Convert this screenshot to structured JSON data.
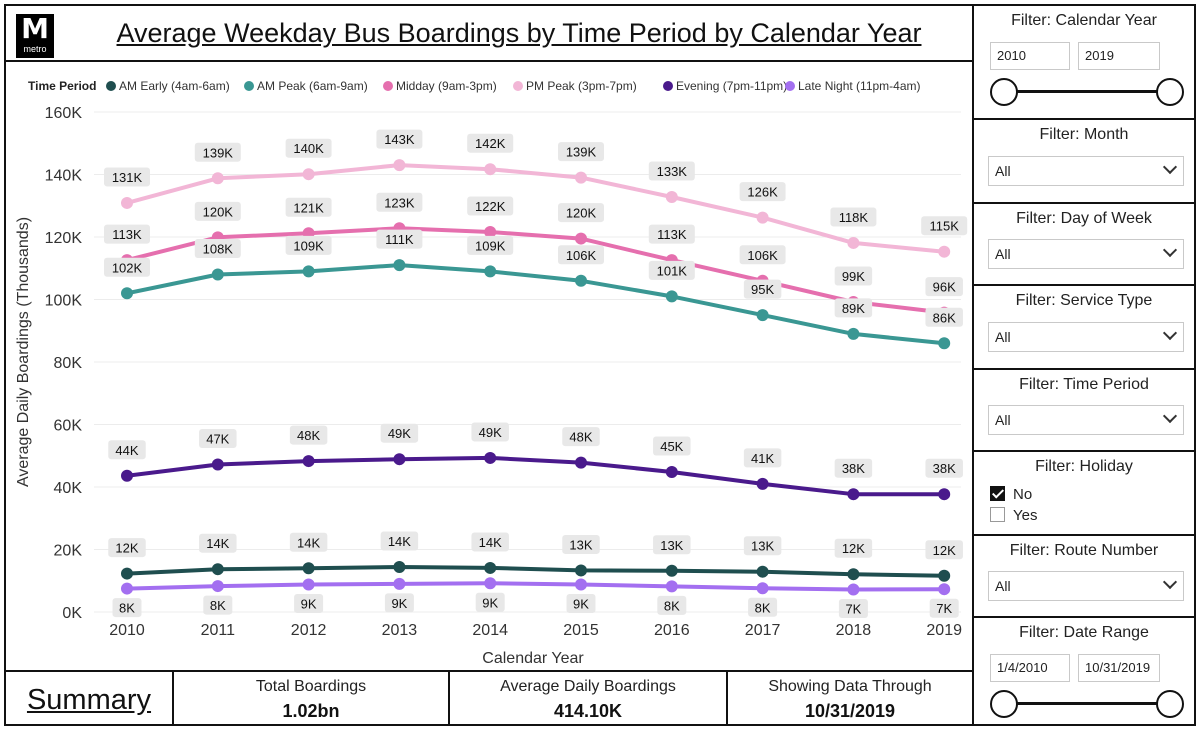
{
  "header": {
    "title": "Average Weekday Bus Boardings by Time Period by Calendar Year",
    "logo_letter": "M",
    "logo_subtext": "metro"
  },
  "chart_data": {
    "type": "line",
    "title": "Average Weekday Bus Boardings by Time Period by Calendar Year",
    "xlabel": "Calendar Year",
    "ylabel": "Average Daily Boardings (Thousands)",
    "legend_title": "Time Period",
    "legend_position": "top",
    "ylim": [
      0,
      160000
    ],
    "y_ticks": [
      0,
      20000,
      40000,
      60000,
      80000,
      100000,
      120000,
      140000,
      160000
    ],
    "y_tick_labels": [
      "0K",
      "20K",
      "40K",
      "60K",
      "80K",
      "100K",
      "120K",
      "140K",
      "160K"
    ],
    "grid": true,
    "x": [
      "2010",
      "2011",
      "2012",
      "2013",
      "2014",
      "2015",
      "2016",
      "2017",
      "2018",
      "2019"
    ],
    "series": [
      {
        "name": "AM Early (4am-6am)",
        "color": "#1f4e4f",
        "values": [
          12300,
          13700,
          14000,
          14400,
          14100,
          13300,
          13200,
          12900,
          12100,
          11600
        ],
        "labels": [
          "12K",
          "14K",
          "14K",
          "14K",
          "14K",
          "13K",
          "13K",
          "13K",
          "12K",
          "12K"
        ],
        "label_position": "above"
      },
      {
        "name": "AM Peak (6am-9am)",
        "color": "#3a9793",
        "values": [
          102000,
          108000,
          109000,
          111000,
          109000,
          106000,
          101000,
          95000,
          89000,
          86000
        ],
        "labels": [
          "102K",
          "108K",
          "109K",
          "111K",
          "109K",
          "106K",
          "101K",
          "95K",
          "89K",
          "86K"
        ],
        "label_position": "above"
      },
      {
        "name": "Midday (9am-3pm)",
        "color": "#e56fae",
        "values": [
          112600,
          119900,
          121200,
          122800,
          121600,
          119500,
          112600,
          106000,
          99200,
          95800
        ],
        "labels": [
          "113K",
          "120K",
          "121K",
          "123K",
          "122K",
          "120K",
          "113K",
          "106K",
          "99K",
          "96K"
        ],
        "label_position": "above"
      },
      {
        "name": "PM Peak (3pm-7pm)",
        "color": "#f2b6d6",
        "values": [
          130900,
          138800,
          140100,
          143000,
          141700,
          139000,
          132800,
          126200,
          118100,
          115300
        ],
        "labels": [
          "131K",
          "139K",
          "140K",
          "143K",
          "142K",
          "139K",
          "133K",
          "126K",
          "118K",
          "115K"
        ],
        "label_position": "above"
      },
      {
        "name": "Evening (7pm-11pm)",
        "color": "#4a1a8c",
        "values": [
          43600,
          47200,
          48300,
          48900,
          49300,
          47800,
          44800,
          41000,
          37700,
          37700
        ],
        "labels": [
          "44K",
          "47K",
          "48K",
          "49K",
          "49K",
          "48K",
          "45K",
          "41K",
          "38K",
          "38K"
        ],
        "label_position": "above"
      },
      {
        "name": "Late Night (11pm-4am)",
        "color": "#a36ff0",
        "values": [
          7500,
          8300,
          8800,
          9000,
          9200,
          8800,
          8200,
          7600,
          7200,
          7300
        ],
        "labels": [
          "8K",
          "8K",
          "9K",
          "9K",
          "9K",
          "9K",
          "8K",
          "8K",
          "7K",
          "7K"
        ],
        "label_position": "below"
      }
    ]
  },
  "summary": {
    "link_label": "Summary",
    "cards": [
      {
        "label": "Total Boardings",
        "value": "1.02bn"
      },
      {
        "label": "Average Daily Boardings",
        "value": "414.10K"
      },
      {
        "label": "Showing Data Through",
        "value": "10/31/2019"
      }
    ]
  },
  "filters": {
    "calendar_year": {
      "title": "Filter: Calendar Year",
      "start": "2010",
      "end": "2019",
      "range": [
        0,
        1
      ]
    },
    "month": {
      "title": "Filter: Month",
      "selected": "All"
    },
    "day_of_week": {
      "title": "Filter: Day of Week",
      "selected": "All"
    },
    "service_type": {
      "title": "Filter: Service Type",
      "selected": "All"
    },
    "time_period": {
      "title": "Filter: Time Period",
      "selected": "All"
    },
    "holiday": {
      "title": "Filter: Holiday",
      "options": [
        {
          "label": "No",
          "checked": true
        },
        {
          "label": "Yes",
          "checked": false
        }
      ]
    },
    "route_number": {
      "title": "Filter: Route Number",
      "selected": "All"
    },
    "date_range": {
      "title": "Filter: Date Range",
      "start": "1/4/2010",
      "end": "10/31/2019",
      "range": [
        0,
        1
      ]
    }
  }
}
